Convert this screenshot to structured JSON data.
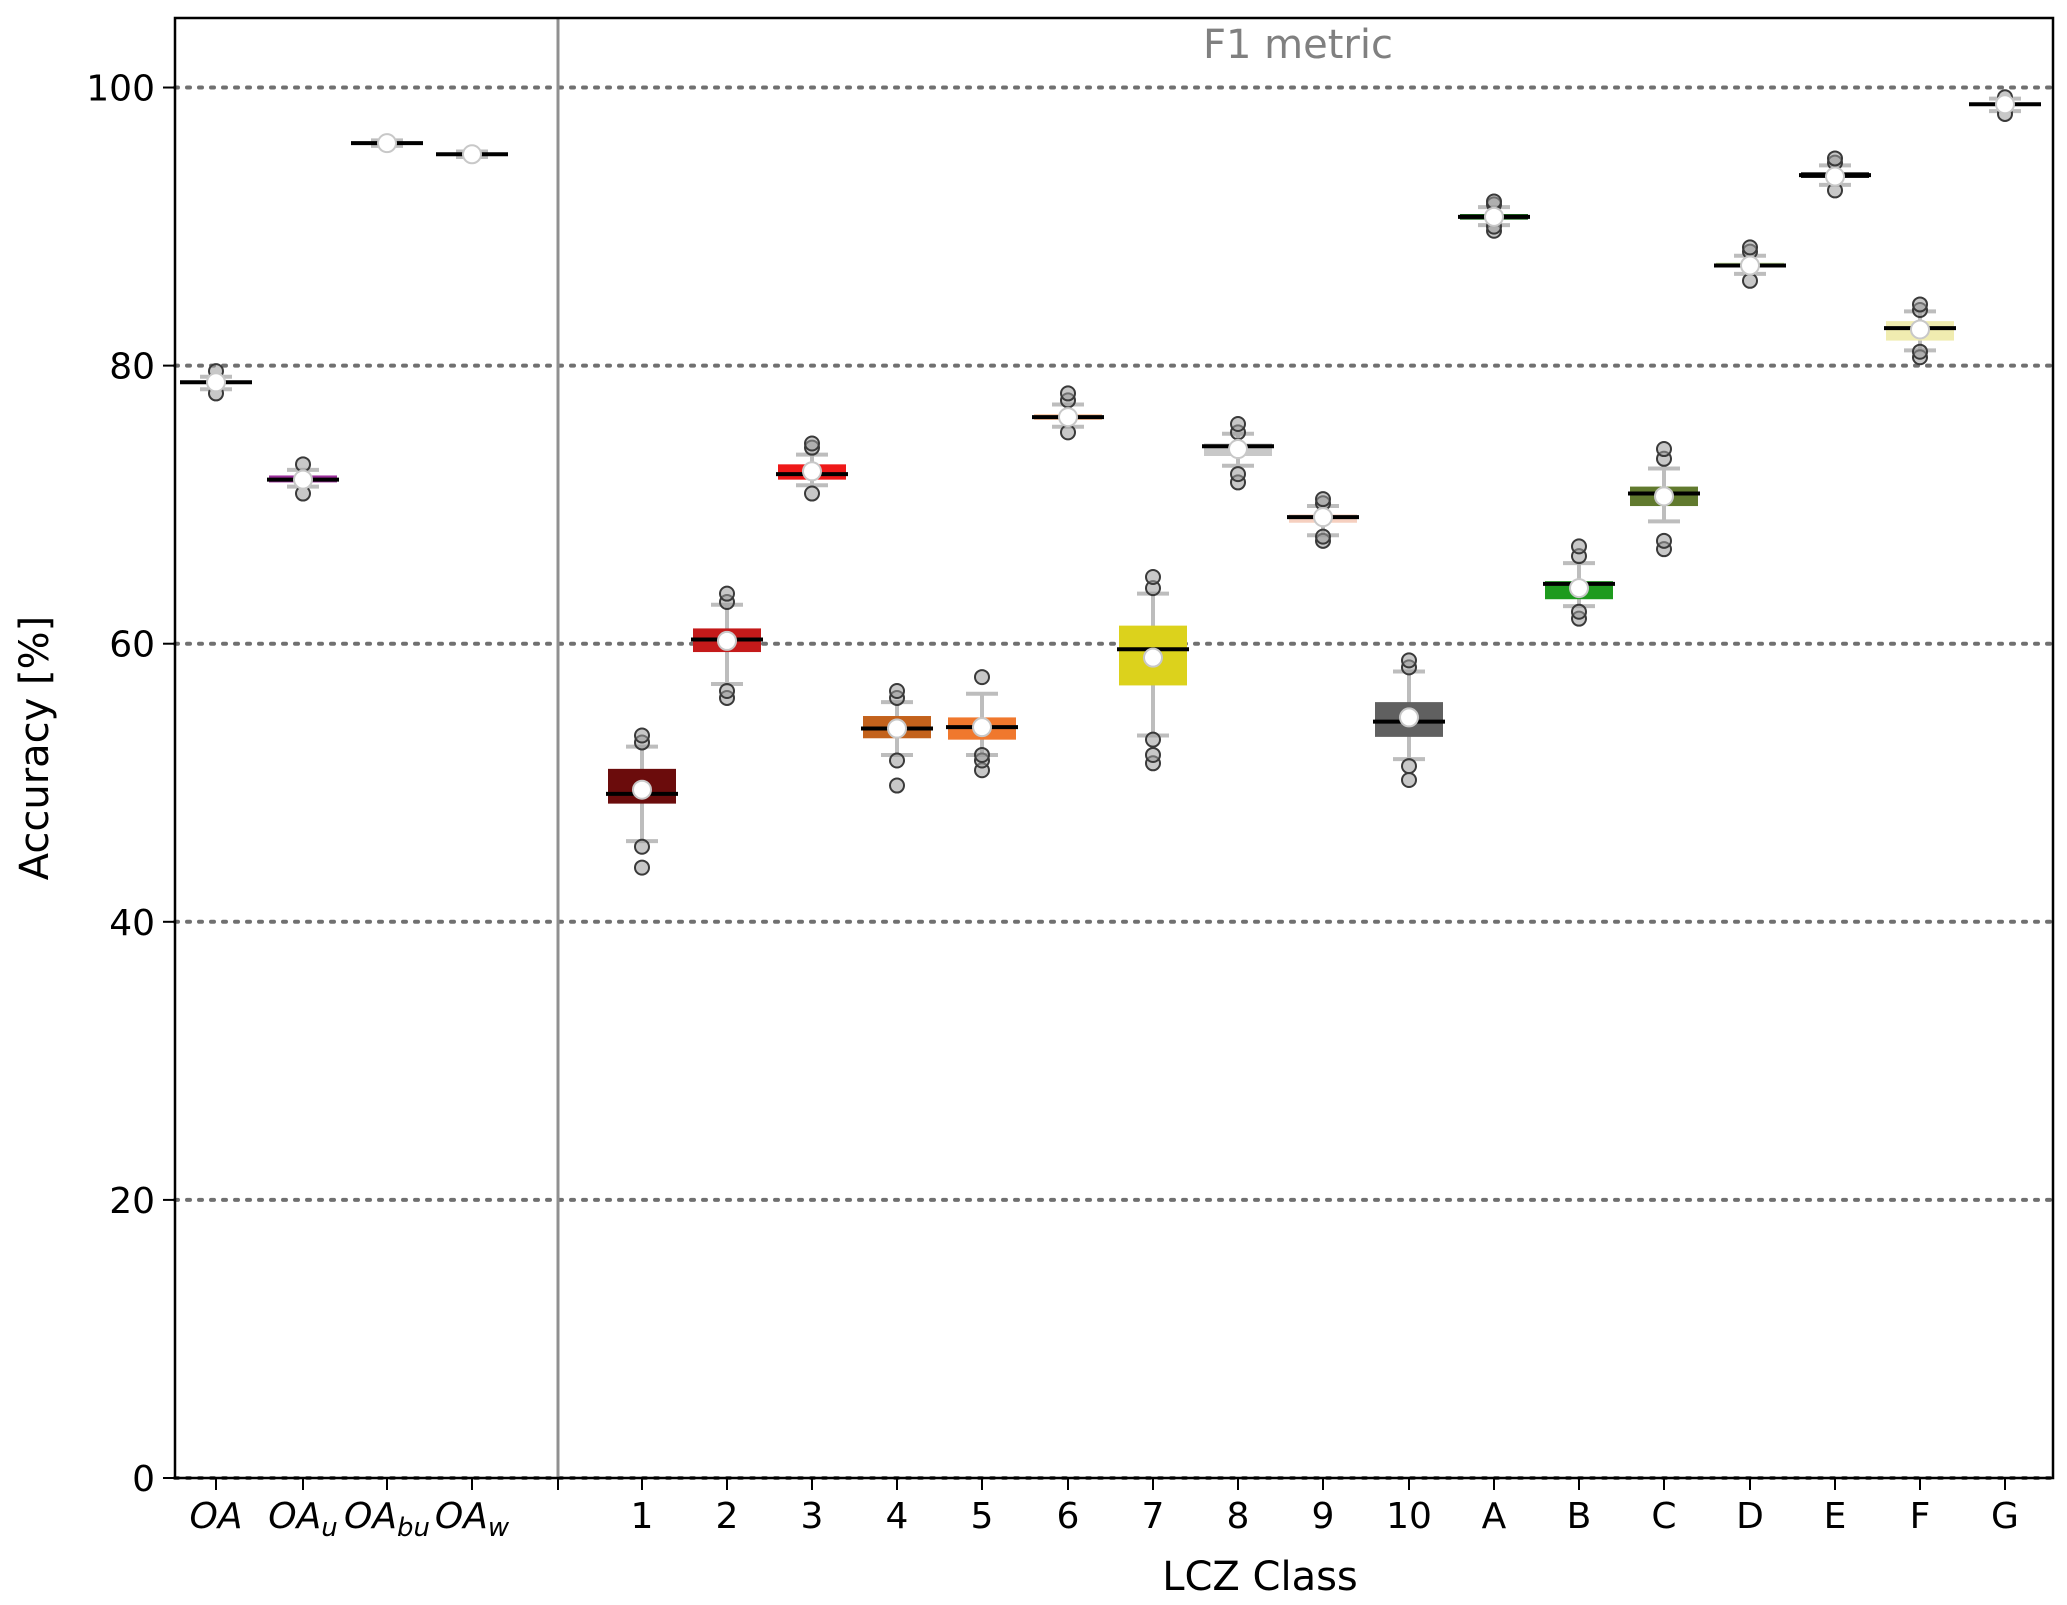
{
  "chart_data": {
    "type": "box",
    "annotation": "F1 metric",
    "xlabel": "LCZ Class",
    "ylabel": "Accuracy [%]",
    "ylim": [
      0,
      105
    ],
    "yticks": [
      0,
      20,
      40,
      60,
      80,
      100
    ],
    "grid": "horizontal dotted at y ticks",
    "separator_after": "OA_w",
    "categories": [
      {
        "id": "OA",
        "label": "OA",
        "sub": "",
        "color": "#ffffff",
        "box": [
          78.6,
          78.9
        ],
        "whisker": [
          78.3,
          79.2
        ],
        "median": 78.8,
        "mean": 78.8,
        "outliers": [
          78.0,
          79.6
        ]
      },
      {
        "id": "OA_u",
        "label": "OA",
        "sub": "u",
        "color": "#9b2f9b",
        "box": [
          71.6,
          72.1
        ],
        "whisker": [
          71.3,
          72.5
        ],
        "median": 71.8,
        "mean": 71.8,
        "outliers": [
          70.8,
          72.9
        ]
      },
      {
        "id": "OA_bu",
        "label": "OA",
        "sub": "bu",
        "color": "#ffffff",
        "box": [
          95.9,
          96.1
        ],
        "whisker": [
          95.8,
          96.2
        ],
        "median": 96.0,
        "mean": 96.0,
        "outliers": []
      },
      {
        "id": "OA_w",
        "label": "OA",
        "sub": "w",
        "color": "#ffffff",
        "box": [
          95.1,
          95.3
        ],
        "whisker": [
          95.0,
          95.4
        ],
        "median": 95.2,
        "mean": 95.2,
        "outliers": []
      },
      {
        "id": "1",
        "label": "1",
        "sub": "",
        "color": "#6b0c0c",
        "box": [
          48.5,
          51.0
        ],
        "whisker": [
          45.8,
          52.6
        ],
        "median": 49.2,
        "mean": 49.5,
        "outliers": [
          43.9,
          45.4,
          52.9,
          53.4
        ]
      },
      {
        "id": "2",
        "label": "2",
        "sub": "",
        "color": "#c41a1a",
        "box": [
          59.4,
          61.1
        ],
        "whisker": [
          57.1,
          62.8
        ],
        "median": 60.3,
        "mean": 60.2,
        "outliers": [
          56.1,
          56.6,
          63.0,
          63.6
        ]
      },
      {
        "id": "3",
        "label": "3",
        "sub": "",
        "color": "#ef1818",
        "box": [
          71.8,
          72.9
        ],
        "whisker": [
          71.4,
          73.6
        ],
        "median": 72.2,
        "mean": 72.4,
        "outliers": [
          70.8,
          74.1,
          74.4
        ]
      },
      {
        "id": "4",
        "label": "4",
        "sub": "",
        "color": "#c3621c",
        "box": [
          53.2,
          54.8
        ],
        "whisker": [
          52.0,
          55.8
        ],
        "median": 53.9,
        "mean": 53.9,
        "outliers": [
          49.8,
          51.6,
          56.1,
          56.6
        ]
      },
      {
        "id": "5",
        "label": "5",
        "sub": "",
        "color": "#f0782d",
        "box": [
          53.1,
          54.7
        ],
        "whisker": [
          52.0,
          56.4
        ],
        "median": 54.0,
        "mean": 54.0,
        "outliers": [
          50.9,
          51.6,
          52.0,
          57.6
        ]
      },
      {
        "id": "6",
        "label": "6",
        "sub": "",
        "color": "#f8b98e",
        "box": [
          76.1,
          76.5
        ],
        "whisker": [
          75.6,
          77.2
        ],
        "median": 76.3,
        "mean": 76.3,
        "outliers": [
          75.2,
          77.5,
          78.0
        ]
      },
      {
        "id": "7",
        "label": "7",
        "sub": "",
        "color": "#dcd21c",
        "box": [
          57.0,
          61.3
        ],
        "whisker": [
          53.4,
          63.6
        ],
        "median": 59.6,
        "mean": 59.0,
        "outliers": [
          51.4,
          52.0,
          53.1,
          64.0,
          64.8
        ]
      },
      {
        "id": "8",
        "label": "8",
        "sub": "",
        "color": "#c8c8c8",
        "box": [
          73.5,
          74.4
        ],
        "whisker": [
          72.8,
          75.1
        ],
        "median": 74.2,
        "mean": 74.0,
        "outliers": [
          71.6,
          72.2,
          75.2,
          75.8
        ]
      },
      {
        "id": "9",
        "label": "9",
        "sub": "",
        "color": "#f6d0c0",
        "box": [
          68.7,
          69.3
        ],
        "whisker": [
          67.8,
          69.9
        ],
        "median": 69.1,
        "mean": 69.1,
        "outliers": [
          67.4,
          67.7,
          70.1,
          70.4
        ]
      },
      {
        "id": "10",
        "label": "10",
        "sub": "",
        "color": "#606060",
        "box": [
          53.3,
          55.8
        ],
        "whisker": [
          51.7,
          58.0
        ],
        "median": 54.4,
        "mean": 54.7,
        "outliers": [
          50.2,
          51.2,
          58.3,
          58.8
        ]
      },
      {
        "id": "A",
        "label": "A",
        "sub": "",
        "color": "#0f5a0f",
        "box": [
          90.5,
          90.9
        ],
        "whisker": [
          90.1,
          91.4
        ],
        "median": 90.7,
        "mean": 90.7,
        "outliers": [
          89.7,
          90.0,
          91.6,
          91.8
        ]
      },
      {
        "id": "B",
        "label": "B",
        "sub": "",
        "color": "#1e9b1e",
        "box": [
          63.2,
          64.5
        ],
        "whisker": [
          62.7,
          65.8
        ],
        "median": 64.3,
        "mean": 64.0,
        "outliers": [
          61.8,
          62.3,
          66.3,
          67.0
        ]
      },
      {
        "id": "C",
        "label": "C",
        "sub": "",
        "color": "#617a2e",
        "box": [
          69.9,
          71.3
        ],
        "whisker": [
          68.8,
          72.6
        ],
        "median": 70.8,
        "mean": 70.6,
        "outliers": [
          66.8,
          67.4,
          73.3,
          74.0
        ]
      },
      {
        "id": "D",
        "label": "D",
        "sub": "",
        "color": "#c7e5a0",
        "box": [
          87.1,
          87.4
        ],
        "whisker": [
          86.6,
          87.9
        ],
        "median": 87.2,
        "mean": 87.2,
        "outliers": [
          86.1,
          88.2,
          88.5
        ]
      },
      {
        "id": "E",
        "label": "E",
        "sub": "",
        "color": "#000000",
        "box": [
          93.5,
          93.9
        ],
        "whisker": [
          93.0,
          94.4
        ],
        "median": 93.7,
        "mean": 93.6,
        "outliers": [
          92.6,
          94.6,
          94.9
        ]
      },
      {
        "id": "F",
        "label": "F",
        "sub": "",
        "color": "#f0ecb0",
        "box": [
          81.8,
          83.2
        ],
        "whisker": [
          81.1,
          83.9
        ],
        "median": 82.7,
        "mean": 82.6,
        "outliers": [
          80.6,
          81.0,
          84.0,
          84.4
        ]
      },
      {
        "id": "G",
        "label": "G",
        "sub": "",
        "color": "#ffffff",
        "box": [
          98.6,
          98.9
        ],
        "whisker": [
          98.3,
          99.2
        ],
        "median": 98.8,
        "mean": 98.8,
        "outliers": [
          98.1,
          99.3
        ]
      }
    ]
  }
}
